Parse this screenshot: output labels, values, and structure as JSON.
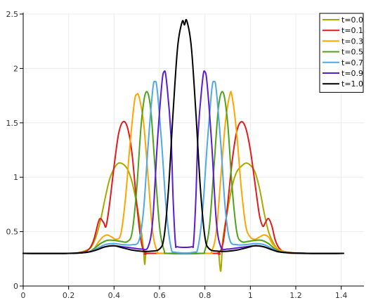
{
  "chart_data": {
    "type": "line",
    "title": "",
    "xlabel": "",
    "ylabel": "",
    "xlim": [
      0,
      1.5
    ],
    "ylim": [
      0,
      2.5
    ],
    "grid": true,
    "legend_position": "top-right",
    "x_ticks": [
      "0",
      "0.2",
      "0.4",
      "0.6",
      "0.8",
      "1",
      "1.2",
      "1.4"
    ],
    "x_tick_values": [
      0,
      0.2,
      0.4,
      0.6,
      0.8,
      1.0,
      1.2,
      1.4
    ],
    "y_ticks": [
      "0",
      "0.5",
      "1",
      "1.5",
      "2",
      "2.5"
    ],
    "y_tick_values": [
      0,
      0.5,
      1.0,
      1.5,
      2.0,
      2.5
    ],
    "series": [
      {
        "name": "t=0.0",
        "color": "#a8a800",
        "points": [
          [
            0,
            0.3
          ],
          [
            0.2,
            0.3
          ],
          [
            0.25,
            0.31
          ],
          [
            0.28,
            0.33
          ],
          [
            0.3,
            0.36
          ],
          [
            0.32,
            0.45
          ],
          [
            0.34,
            0.6
          ],
          [
            0.36,
            0.8
          ],
          [
            0.38,
            0.98
          ],
          [
            0.4,
            1.08
          ],
          [
            0.42,
            1.13
          ],
          [
            0.44,
            1.12
          ],
          [
            0.46,
            1.07
          ],
          [
            0.48,
            0.95
          ],
          [
            0.5,
            0.75
          ],
          [
            0.52,
            0.5
          ],
          [
            0.53,
            0.32
          ],
          [
            0.535,
            0.2
          ],
          [
            0.54,
            0.3
          ],
          [
            0.55,
            0.3
          ],
          [
            0.6,
            0.3
          ],
          [
            0.7,
            0.3
          ],
          [
            0.8,
            0.3
          ],
          [
            0.85,
            0.3
          ],
          [
            0.86,
            0.3
          ],
          [
            0.865,
            0.2
          ],
          [
            0.87,
            0.14
          ],
          [
            0.875,
            0.3
          ],
          [
            0.88,
            0.45
          ],
          [
            0.9,
            0.7
          ],
          [
            0.92,
            0.92
          ],
          [
            0.94,
            1.05
          ],
          [
            0.96,
            1.1
          ],
          [
            0.98,
            1.13
          ],
          [
            1.0,
            1.11
          ],
          [
            1.02,
            1.05
          ],
          [
            1.04,
            0.9
          ],
          [
            1.06,
            0.68
          ],
          [
            1.08,
            0.5
          ],
          [
            1.1,
            0.4
          ],
          [
            1.12,
            0.34
          ],
          [
            1.15,
            0.31
          ],
          [
            1.2,
            0.3
          ],
          [
            1.41,
            0.3
          ]
        ]
      },
      {
        "name": "t=0.1",
        "color": "#e31a1c",
        "points": [
          [
            0,
            0.3
          ],
          [
            0.2,
            0.3
          ],
          [
            0.26,
            0.31
          ],
          [
            0.29,
            0.34
          ],
          [
            0.31,
            0.42
          ],
          [
            0.33,
            0.58
          ],
          [
            0.34,
            0.62
          ],
          [
            0.355,
            0.58
          ],
          [
            0.365,
            0.55
          ],
          [
            0.38,
            0.75
          ],
          [
            0.4,
            1.1
          ],
          [
            0.42,
            1.4
          ],
          [
            0.44,
            1.51
          ],
          [
            0.46,
            1.45
          ],
          [
            0.48,
            1.2
          ],
          [
            0.5,
            0.75
          ],
          [
            0.52,
            0.4
          ],
          [
            0.54,
            0.3
          ],
          [
            0.56,
            0.3
          ],
          [
            0.84,
            0.3
          ],
          [
            0.86,
            0.3
          ],
          [
            0.88,
            0.4
          ],
          [
            0.9,
            0.75
          ],
          [
            0.92,
            1.15
          ],
          [
            0.94,
            1.42
          ],
          [
            0.96,
            1.51
          ],
          [
            0.98,
            1.45
          ],
          [
            1.0,
            1.25
          ],
          [
            1.02,
            0.95
          ],
          [
            1.04,
            0.65
          ],
          [
            1.055,
            0.55
          ],
          [
            1.065,
            0.58
          ],
          [
            1.08,
            0.62
          ],
          [
            1.095,
            0.55
          ],
          [
            1.11,
            0.42
          ],
          [
            1.13,
            0.34
          ],
          [
            1.16,
            0.31
          ],
          [
            1.22,
            0.3
          ],
          [
            1.41,
            0.3
          ]
        ]
      },
      {
        "name": "t=0.3",
        "color": "#ffa500",
        "points": [
          [
            0,
            0.3
          ],
          [
            0.2,
            0.3
          ],
          [
            0.28,
            0.31
          ],
          [
            0.31,
            0.34
          ],
          [
            0.33,
            0.4
          ],
          [
            0.35,
            0.45
          ],
          [
            0.37,
            0.47
          ],
          [
            0.39,
            0.45
          ],
          [
            0.41,
            0.43
          ],
          [
            0.43,
            0.48
          ],
          [
            0.45,
            0.8
          ],
          [
            0.47,
            1.3
          ],
          [
            0.49,
            1.7
          ],
          [
            0.5,
            1.76
          ],
          [
            0.51,
            1.74
          ],
          [
            0.53,
            1.5
          ],
          [
            0.55,
            1.0
          ],
          [
            0.57,
            0.5
          ],
          [
            0.59,
            0.32
          ],
          [
            0.61,
            0.3
          ],
          [
            0.81,
            0.3
          ],
          [
            0.83,
            0.32
          ],
          [
            0.85,
            0.5
          ],
          [
            0.87,
            1.0
          ],
          [
            0.89,
            1.5
          ],
          [
            0.91,
            1.76
          ],
          [
            0.92,
            1.74
          ],
          [
            0.94,
            1.4
          ],
          [
            0.96,
            0.9
          ],
          [
            0.98,
            0.55
          ],
          [
            1.0,
            0.45
          ],
          [
            1.02,
            0.43
          ],
          [
            1.04,
            0.45
          ],
          [
            1.06,
            0.47
          ],
          [
            1.08,
            0.45
          ],
          [
            1.1,
            0.38
          ],
          [
            1.13,
            0.33
          ],
          [
            1.17,
            0.31
          ],
          [
            1.25,
            0.3
          ],
          [
            1.41,
            0.3
          ]
        ]
      },
      {
        "name": "t=0.5",
        "color": "#4da31a",
        "points": [
          [
            0,
            0.3
          ],
          [
            0.2,
            0.3
          ],
          [
            0.28,
            0.31
          ],
          [
            0.31,
            0.34
          ],
          [
            0.34,
            0.39
          ],
          [
            0.37,
            0.42
          ],
          [
            0.4,
            0.42
          ],
          [
            0.43,
            0.41
          ],
          [
            0.46,
            0.41
          ],
          [
            0.48,
            0.5
          ],
          [
            0.5,
            0.9
          ],
          [
            0.52,
            1.5
          ],
          [
            0.54,
            1.78
          ],
          [
            0.56,
            1.65
          ],
          [
            0.58,
            1.1
          ],
          [
            0.6,
            0.55
          ],
          [
            0.62,
            0.33
          ],
          [
            0.64,
            0.3
          ],
          [
            0.78,
            0.3
          ],
          [
            0.8,
            0.33
          ],
          [
            0.82,
            0.55
          ],
          [
            0.84,
            1.1
          ],
          [
            0.86,
            1.65
          ],
          [
            0.88,
            1.78
          ],
          [
            0.9,
            1.5
          ],
          [
            0.92,
            0.9
          ],
          [
            0.94,
            0.5
          ],
          [
            0.96,
            0.41
          ],
          [
            0.99,
            0.41
          ],
          [
            1.02,
            0.42
          ],
          [
            1.05,
            0.42
          ],
          [
            1.08,
            0.39
          ],
          [
            1.11,
            0.34
          ],
          [
            1.15,
            0.31
          ],
          [
            1.25,
            0.3
          ],
          [
            1.41,
            0.3
          ]
        ]
      },
      {
        "name": "t=0.7",
        "color": "#4fa8e8",
        "points": [
          [
            0,
            0.3
          ],
          [
            0.2,
            0.3
          ],
          [
            0.28,
            0.31
          ],
          [
            0.32,
            0.34
          ],
          [
            0.36,
            0.38
          ],
          [
            0.4,
            0.39
          ],
          [
            0.44,
            0.38
          ],
          [
            0.48,
            0.38
          ],
          [
            0.51,
            0.42
          ],
          [
            0.53,
            0.7
          ],
          [
            0.55,
            1.3
          ],
          [
            0.57,
            1.8
          ],
          [
            0.58,
            1.88
          ],
          [
            0.59,
            1.8
          ],
          [
            0.61,
            1.3
          ],
          [
            0.63,
            0.7
          ],
          [
            0.65,
            0.36
          ],
          [
            0.67,
            0.31
          ],
          [
            0.75,
            0.31
          ],
          [
            0.77,
            0.36
          ],
          [
            0.79,
            0.7
          ],
          [
            0.81,
            1.3
          ],
          [
            0.83,
            1.8
          ],
          [
            0.84,
            1.88
          ],
          [
            0.85,
            1.8
          ],
          [
            0.87,
            1.3
          ],
          [
            0.89,
            0.7
          ],
          [
            0.91,
            0.42
          ],
          [
            0.94,
            0.38
          ],
          [
            0.98,
            0.38
          ],
          [
            1.02,
            0.39
          ],
          [
            1.06,
            0.38
          ],
          [
            1.1,
            0.34
          ],
          [
            1.14,
            0.31
          ],
          [
            1.25,
            0.3
          ],
          [
            1.41,
            0.3
          ]
        ]
      },
      {
        "name": "t=0.9",
        "color": "#5b1ad6",
        "points": [
          [
            0,
            0.3
          ],
          [
            0.2,
            0.3
          ],
          [
            0.28,
            0.31
          ],
          [
            0.32,
            0.33
          ],
          [
            0.36,
            0.36
          ],
          [
            0.4,
            0.37
          ],
          [
            0.44,
            0.36
          ],
          [
            0.48,
            0.35
          ],
          [
            0.52,
            0.34
          ],
          [
            0.55,
            0.36
          ],
          [
            0.57,
            0.6
          ],
          [
            0.59,
            1.3
          ],
          [
            0.61,
            1.85
          ],
          [
            0.62,
            1.97
          ],
          [
            0.63,
            1.9
          ],
          [
            0.65,
            1.4
          ],
          [
            0.66,
            0.8
          ],
          [
            0.67,
            0.4
          ],
          [
            0.68,
            0.36
          ],
          [
            0.74,
            0.36
          ],
          [
            0.75,
            0.4
          ],
          [
            0.76,
            0.8
          ],
          [
            0.77,
            1.4
          ],
          [
            0.79,
            1.9
          ],
          [
            0.8,
            1.97
          ],
          [
            0.81,
            1.85
          ],
          [
            0.83,
            1.3
          ],
          [
            0.85,
            0.6
          ],
          [
            0.87,
            0.36
          ],
          [
            0.9,
            0.34
          ],
          [
            0.94,
            0.35
          ],
          [
            0.98,
            0.36
          ],
          [
            1.02,
            0.37
          ],
          [
            1.06,
            0.36
          ],
          [
            1.1,
            0.33
          ],
          [
            1.14,
            0.31
          ],
          [
            1.25,
            0.3
          ],
          [
            1.41,
            0.3
          ]
        ]
      },
      {
        "name": "t=1.0",
        "color": "#000000",
        "points": [
          [
            0,
            0.3
          ],
          [
            0.2,
            0.3
          ],
          [
            0.28,
            0.31
          ],
          [
            0.32,
            0.33
          ],
          [
            0.36,
            0.36
          ],
          [
            0.4,
            0.37
          ],
          [
            0.44,
            0.35
          ],
          [
            0.48,
            0.33
          ],
          [
            0.52,
            0.32
          ],
          [
            0.56,
            0.32
          ],
          [
            0.6,
            0.34
          ],
          [
            0.62,
            0.45
          ],
          [
            0.64,
            0.9
          ],
          [
            0.66,
            1.6
          ],
          [
            0.68,
            2.2
          ],
          [
            0.7,
            2.43
          ],
          [
            0.71,
            2.4
          ],
          [
            0.72,
            2.44
          ],
          [
            0.74,
            2.2
          ],
          [
            0.76,
            1.6
          ],
          [
            0.78,
            0.9
          ],
          [
            0.8,
            0.45
          ],
          [
            0.82,
            0.34
          ],
          [
            0.86,
            0.32
          ],
          [
            0.9,
            0.32
          ],
          [
            0.94,
            0.33
          ],
          [
            0.98,
            0.35
          ],
          [
            1.02,
            0.37
          ],
          [
            1.06,
            0.36
          ],
          [
            1.1,
            0.33
          ],
          [
            1.14,
            0.31
          ],
          [
            1.25,
            0.3
          ],
          [
            1.41,
            0.3
          ]
        ]
      }
    ]
  }
}
